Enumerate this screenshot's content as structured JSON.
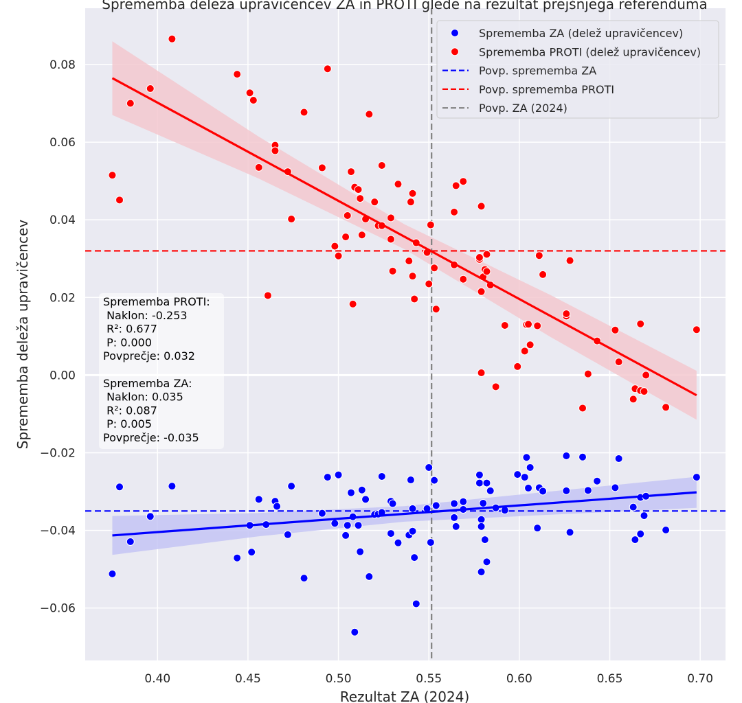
{
  "chart_data": {
    "type": "scatter",
    "title": "Sprememba deleža upravičencev ZA in PROTI glede na rezultat prejšnjega referenduma",
    "xlabel": "Rezultat ZA (2024)",
    "ylabel": "Sprememba deleža upravičencev",
    "xlim": [
      0.36,
      0.714
    ],
    "ylim": [
      -0.0735,
      0.0945
    ],
    "xticks": [
      0.4,
      0.45,
      0.5,
      0.55,
      0.6,
      0.65,
      0.7
    ],
    "xtick_labels": [
      "0.40",
      "0.45",
      "0.50",
      "0.55",
      "0.60",
      "0.65",
      "0.70"
    ],
    "yticks": [
      -0.06,
      -0.04,
      -0.02,
      0.0,
      0.02,
      0.04,
      0.06,
      0.08
    ],
    "ytick_labels": [
      "−0.06",
      "−0.04",
      "−0.02",
      "0.00",
      "0.02",
      "0.04",
      "0.06",
      "0.08"
    ],
    "grid": true,
    "legend_position": "top-right",
    "colors": {
      "za": "#0000ff",
      "proti": "#ff0000",
      "vline": "#808080",
      "background": "#eaeaf2",
      "za_band": "#c4c4f4",
      "proti_band": "#f3c8cf"
    },
    "legend": [
      {
        "label": "Sprememba ZA (delež upravičencev)",
        "kind": "marker",
        "color": "#0000ff"
      },
      {
        "label": "Sprememba PROTI (delež upravičencev)",
        "kind": "marker",
        "color": "#ff0000"
      },
      {
        "label": "Povp. sprememba ZA",
        "kind": "dashed",
        "color": "#0000ff"
      },
      {
        "label": "Povp. sprememba PROTI",
        "kind": "dashed",
        "color": "#ff0000"
      },
      {
        "label": "Povp. ZA (2024)",
        "kind": "dashed",
        "color": "#808080"
      }
    ],
    "reference_lines": {
      "mean_proti": 0.032,
      "mean_za": -0.035,
      "mean_x": 0.5515
    },
    "regression": {
      "proti": {
        "x": [
          0.375,
          0.698
        ],
        "y": [
          0.0765,
          -0.0052
        ],
        "band_halfwidth": [
          0.0095,
          0.0054,
          0.0032,
          0.0054,
          0.0063
        ]
      },
      "za": {
        "x": [
          0.375,
          0.698
        ],
        "y": [
          -0.0413,
          -0.0302
        ],
        "band_halfwidth": [
          0.005,
          0.003,
          0.002,
          0.003,
          0.004
        ]
      }
    },
    "stats_box": [
      "Sprememba PROTI:",
      " Naklon: -0.253",
      " R²: 0.677",
      " P: 0.000",
      "Povprečje: 0.032",
      "",
      "Sprememba ZA:",
      " Naklon: 0.035",
      " R²: 0.087",
      " P: 0.005",
      "Povprečje: -0.035"
    ],
    "series": [
      {
        "name": "Sprememba PROTI (delež upravičencev)",
        "color": "#ff0000",
        "x": [
          0.375,
          0.379,
          0.385,
          0.396,
          0.408,
          0.444,
          0.451,
          0.453,
          0.456,
          0.461,
          0.465,
          0.465,
          0.472,
          0.474,
          0.481,
          0.491,
          0.494,
          0.498,
          0.5,
          0.504,
          0.505,
          0.507,
          0.508,
          0.509,
          0.511,
          0.512,
          0.513,
          0.515,
          0.517,
          0.52,
          0.522,
          0.524,
          0.524,
          0.529,
          0.529,
          0.53,
          0.533,
          0.539,
          0.54,
          0.541,
          0.541,
          0.542,
          0.543,
          0.549,
          0.55,
          0.551,
          0.553,
          0.554,
          0.564,
          0.564,
          0.565,
          0.569,
          0.569,
          0.578,
          0.578,
          0.579,
          0.579,
          0.579,
          0.58,
          0.581,
          0.582,
          0.582,
          0.584,
          0.587,
          0.592,
          0.599,
          0.603,
          0.604,
          0.605,
          0.606,
          0.61,
          0.611,
          0.613,
          0.626,
          0.626,
          0.628,
          0.635,
          0.638,
          0.643,
          0.653,
          0.655,
          0.663,
          0.664,
          0.667,
          0.667,
          0.669,
          0.67,
          0.681,
          0.698
        ],
        "y": [
          0.0515,
          0.0451,
          0.07,
          0.0738,
          0.0866,
          0.0775,
          0.0727,
          0.0708,
          0.0535,
          0.0205,
          0.0592,
          0.0578,
          0.0524,
          0.0402,
          0.0677,
          0.0534,
          0.0789,
          0.0332,
          0.0307,
          0.0356,
          0.0411,
          0.0524,
          0.0183,
          0.0484,
          0.0478,
          0.0455,
          0.0361,
          0.0402,
          0.0672,
          0.0446,
          0.0385,
          0.054,
          0.0385,
          0.0405,
          0.035,
          0.0268,
          0.0492,
          0.0294,
          0.0446,
          0.0468,
          0.0255,
          0.0196,
          0.0341,
          0.0316,
          0.0235,
          0.0387,
          0.0276,
          0.017,
          0.0284,
          0.042,
          0.0488,
          0.0247,
          0.0499,
          0.0298,
          0.0303,
          0.0435,
          0.0215,
          0.0006,
          0.0253,
          0.0272,
          0.0267,
          0.0311,
          0.0232,
          -0.003,
          0.0128,
          0.0022,
          0.0062,
          0.013,
          0.0131,
          0.0078,
          0.0127,
          0.0308,
          0.0259,
          0.0152,
          0.0158,
          0.0295,
          -0.0085,
          0.0003,
          0.0088,
          0.0116,
          0.0034,
          -0.0062,
          -0.0035,
          -0.004,
          0.0132,
          -0.0042,
          -0.0,
          -0.0083,
          0.0117
        ]
      },
      {
        "name": "Sprememba ZA (delež upravičencev)",
        "color": "#0000ff",
        "x": [
          0.375,
          0.379,
          0.385,
          0.396,
          0.408,
          0.444,
          0.451,
          0.452,
          0.456,
          0.46,
          0.465,
          0.466,
          0.472,
          0.474,
          0.481,
          0.491,
          0.494,
          0.498,
          0.5,
          0.504,
          0.505,
          0.507,
          0.508,
          0.509,
          0.511,
          0.512,
          0.513,
          0.515,
          0.517,
          0.52,
          0.522,
          0.524,
          0.524,
          0.529,
          0.529,
          0.53,
          0.533,
          0.539,
          0.54,
          0.541,
          0.541,
          0.542,
          0.543,
          0.549,
          0.55,
          0.551,
          0.553,
          0.554,
          0.564,
          0.564,
          0.565,
          0.569,
          0.569,
          0.578,
          0.578,
          0.579,
          0.579,
          0.579,
          0.58,
          0.581,
          0.582,
          0.582,
          0.584,
          0.587,
          0.592,
          0.599,
          0.603,
          0.604,
          0.605,
          0.606,
          0.61,
          0.611,
          0.613,
          0.626,
          0.626,
          0.628,
          0.635,
          0.638,
          0.643,
          0.653,
          0.655,
          0.663,
          0.664,
          0.667,
          0.667,
          0.669,
          0.67,
          0.681,
          0.698
        ],
        "y": [
          -0.0512,
          -0.0288,
          -0.0429,
          -0.0364,
          -0.0286,
          -0.0471,
          -0.0387,
          -0.0456,
          -0.032,
          -0.0385,
          -0.0325,
          -0.0338,
          -0.0411,
          -0.0286,
          -0.0523,
          -0.0356,
          -0.0263,
          -0.0382,
          -0.0257,
          -0.0413,
          -0.0387,
          -0.0303,
          -0.0365,
          -0.0662,
          -0.0387,
          -0.0455,
          -0.0296,
          -0.032,
          -0.0519,
          -0.0359,
          -0.0358,
          -0.0261,
          -0.0354,
          -0.0408,
          -0.0325,
          -0.0331,
          -0.0432,
          -0.0412,
          -0.027,
          -0.0344,
          -0.0402,
          -0.047,
          -0.0589,
          -0.0344,
          -0.0238,
          -0.0431,
          -0.0271,
          -0.0336,
          -0.0331,
          -0.0367,
          -0.039,
          -0.0326,
          -0.0346,
          -0.0257,
          -0.0278,
          -0.0507,
          -0.0372,
          -0.039,
          -0.033,
          -0.0424,
          -0.0278,
          -0.0481,
          -0.0298,
          -0.0342,
          -0.0348,
          -0.0256,
          -0.0263,
          -0.0212,
          -0.0291,
          -0.0238,
          -0.0394,
          -0.029,
          -0.0299,
          -0.0208,
          -0.0298,
          -0.0405,
          -0.0211,
          -0.0297,
          -0.0273,
          -0.029,
          -0.0215,
          -0.034,
          -0.0424,
          -0.0315,
          -0.0409,
          -0.0362,
          -0.0312,
          -0.0399,
          -0.0263
        ]
      }
    ]
  }
}
